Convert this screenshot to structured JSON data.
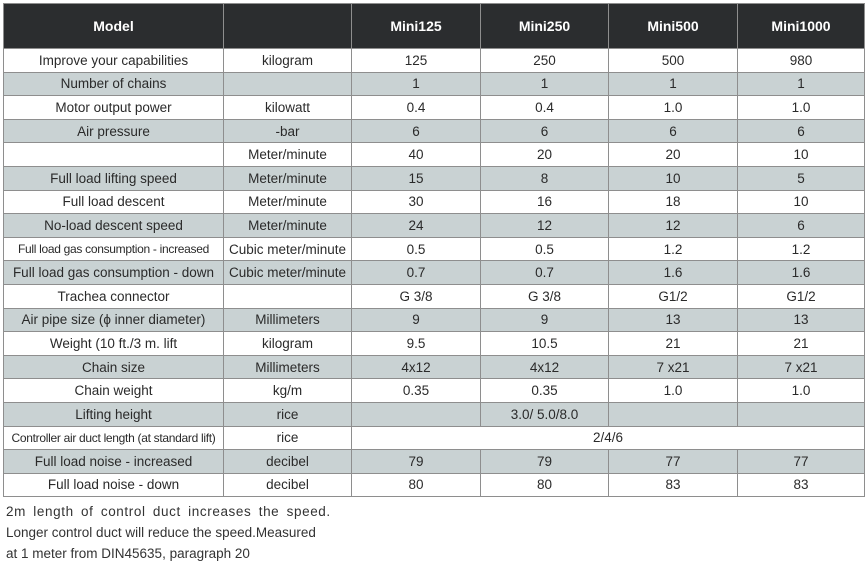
{
  "table": {
    "headers": [
      "Model",
      "",
      "Mini125",
      "Mini250",
      "Mini500",
      "Mini1000"
    ],
    "rows": [
      {
        "label": "Improve your capabilities",
        "unit": "kilogram",
        "values": [
          "125",
          "250",
          "500",
          "980"
        ]
      },
      {
        "label": "Number of chains",
        "unit": "",
        "values": [
          "1",
          "1",
          "1",
          "1"
        ]
      },
      {
        "label": "Motor output power",
        "unit": "kilowatt",
        "values": [
          "0.4",
          "0.4",
          "1.0",
          "1.0"
        ]
      },
      {
        "label": "Air pressure",
        "unit": "-bar",
        "values": [
          "6",
          "6",
          "6",
          "6"
        ]
      },
      {
        "label": "",
        "unit": "Meter/minute",
        "values": [
          "40",
          "20",
          "20",
          "10"
        ]
      },
      {
        "label": "Full load lifting speed",
        "unit": "Meter/minute",
        "values": [
          "15",
          "8",
          "10",
          "5"
        ]
      },
      {
        "label": "Full load descent",
        "unit": "Meter/minute",
        "values": [
          "30",
          "16",
          "18",
          "10"
        ]
      },
      {
        "label": "No-load descent speed",
        "unit": "Meter/minute",
        "values": [
          "24",
          "12",
          "12",
          "6"
        ]
      },
      {
        "label": "Full load gas consumption - increased",
        "unit": "Cubic meter/minute",
        "values": [
          "0.5",
          "0.5",
          "1.2",
          "1.2"
        ]
      },
      {
        "label": "Full load gas consumption - down",
        "unit": "Cubic meter/minute",
        "values": [
          "0.7",
          "0.7",
          "1.6",
          "1.6"
        ]
      },
      {
        "label": "Trachea connector",
        "unit": "",
        "values": [
          "G 3/8",
          "G 3/8",
          "G1/2",
          "G1/2"
        ]
      },
      {
        "label": "Air pipe size (ϕ inner diameter)",
        "unit": "Millimeters",
        "values": [
          "9",
          "9",
          "13",
          "13"
        ]
      },
      {
        "label": "Weight (10 ft./3 m. lift",
        "unit": "kilogram",
        "values": [
          "9.5",
          "10.5",
          "21",
          "21"
        ]
      },
      {
        "label": "Chain size",
        "unit": "Millimeters",
        "values": [
          "4x12",
          "4x12",
          "7 x21",
          "7 x21"
        ]
      },
      {
        "label": "Chain weight",
        "unit": "kg/m",
        "values": [
          "0.35",
          "0.35",
          "1.0",
          "1.0"
        ]
      },
      {
        "label": "Lifting height",
        "unit": "rice",
        "values": [
          "",
          "3.0/ 5.0/8.0",
          "",
          ""
        ]
      },
      {
        "label": "Controller air duct length (at standard lift)",
        "unit": "rice",
        "values": [
          "",
          "2/4/6",
          "",
          ""
        ]
      },
      {
        "label": "Full load noise - increased",
        "unit": "decibel",
        "values": [
          "79",
          "79",
          "77",
          "77"
        ]
      },
      {
        "label": "Full load noise - down",
        "unit": "decibel",
        "values": [
          "80",
          "80",
          "83",
          "83"
        ]
      }
    ]
  },
  "notes": [
    "2m length of control duct increases the speed.",
    "Longer control duct will reduce the speed.Measured",
    "at 1 meter from DIN45635, paragraph 20"
  ]
}
